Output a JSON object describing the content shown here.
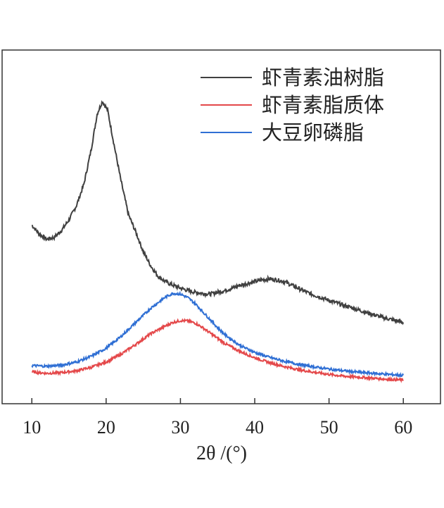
{
  "chart_data": {
    "type": "line",
    "title": "",
    "xlabel": "2θ /(°)",
    "ylabel": "",
    "xlim": [
      6,
      65
    ],
    "ylim": [
      0,
      100
    ],
    "xticks": [
      "10",
      "20",
      "30",
      "40",
      "50",
      "60"
    ],
    "grid": false,
    "legend_position": "top-right",
    "series": [
      {
        "name": "虾青素油树脂",
        "color": "#404040",
        "points": [
          [
            10,
            50.5
          ],
          [
            11,
            48
          ],
          [
            12,
            46.5
          ],
          [
            13,
            47
          ],
          [
            14,
            49
          ],
          [
            15,
            52
          ],
          [
            16,
            56
          ],
          [
            17,
            62
          ],
          [
            18,
            72
          ],
          [
            18.8,
            82
          ],
          [
            19.5,
            85.5
          ],
          [
            20.2,
            83
          ],
          [
            21,
            74
          ],
          [
            22,
            63
          ],
          [
            23,
            53.5
          ],
          [
            24,
            48.5
          ],
          [
            25,
            43
          ],
          [
            26,
            39
          ],
          [
            27,
            36
          ],
          [
            28,
            34.5
          ],
          [
            29,
            33.5
          ],
          [
            30,
            32.7
          ],
          [
            31,
            32
          ],
          [
            32,
            31.5
          ],
          [
            33,
            31.2
          ],
          [
            34,
            31
          ],
          [
            35,
            31.5
          ],
          [
            36,
            32
          ],
          [
            37,
            32.7
          ],
          [
            38,
            33.5
          ],
          [
            39,
            34
          ],
          [
            40,
            34.5
          ],
          [
            41,
            35
          ],
          [
            42,
            35.3
          ],
          [
            43,
            35
          ],
          [
            44,
            34.5
          ],
          [
            45,
            33.5
          ],
          [
            46,
            32.5
          ],
          [
            47,
            31.5
          ],
          [
            48,
            30.7
          ],
          [
            49,
            30
          ],
          [
            50,
            29.2
          ],
          [
            51,
            28.5
          ],
          [
            52,
            27.8
          ],
          [
            53,
            27.2
          ],
          [
            54,
            26.5
          ],
          [
            55,
            25.8
          ],
          [
            56,
            25.2
          ],
          [
            57,
            24.5
          ],
          [
            58,
            24
          ],
          [
            59,
            23.5
          ],
          [
            60,
            23
          ]
        ]
      },
      {
        "name": "虾青素脂质体",
        "color": "#e4484a",
        "points": [
          [
            10,
            9
          ],
          [
            12,
            8.6
          ],
          [
            14,
            8.8
          ],
          [
            16,
            9.3
          ],
          [
            18,
            10.3
          ],
          [
            20,
            11.8
          ],
          [
            22,
            14
          ],
          [
            24,
            16.8
          ],
          [
            26,
            19.8
          ],
          [
            28,
            22
          ],
          [
            29,
            23
          ],
          [
            30,
            23.5
          ],
          [
            31,
            23.4
          ],
          [
            32,
            22.8
          ],
          [
            33,
            21.5
          ],
          [
            34,
            20
          ],
          [
            35,
            18.5
          ],
          [
            36,
            17
          ],
          [
            38,
            14.8
          ],
          [
            40,
            13
          ],
          [
            42,
            11.6
          ],
          [
            44,
            10.5
          ],
          [
            46,
            9.6
          ],
          [
            48,
            8.9
          ],
          [
            50,
            8.3
          ],
          [
            52,
            7.8
          ],
          [
            54,
            7.5
          ],
          [
            56,
            7.2
          ],
          [
            58,
            6.9
          ],
          [
            60,
            6.7
          ]
        ]
      },
      {
        "name": "大豆卵磷脂",
        "color": "#2f6fd4",
        "points": [
          [
            10,
            10.8
          ],
          [
            12,
            10.6
          ],
          [
            14,
            10.9
          ],
          [
            16,
            11.8
          ],
          [
            18,
            13.4
          ],
          [
            20,
            15.7
          ],
          [
            22,
            19
          ],
          [
            24,
            23
          ],
          [
            26,
            27
          ],
          [
            28,
            30.2
          ],
          [
            29,
            31.2
          ],
          [
            30,
            31
          ],
          [
            31,
            30
          ],
          [
            32,
            28.3
          ],
          [
            33,
            26
          ],
          [
            34,
            23.8
          ],
          [
            35,
            21.5
          ],
          [
            36,
            19.5
          ],
          [
            38,
            16.5
          ],
          [
            40,
            14.5
          ],
          [
            42,
            13.1
          ],
          [
            44,
            12
          ],
          [
            46,
            11.1
          ],
          [
            48,
            10.4
          ],
          [
            50,
            9.8
          ],
          [
            52,
            9.3
          ],
          [
            54,
            8.9
          ],
          [
            56,
            8.6
          ],
          [
            58,
            8.3
          ],
          [
            60,
            8
          ]
        ]
      }
    ]
  }
}
